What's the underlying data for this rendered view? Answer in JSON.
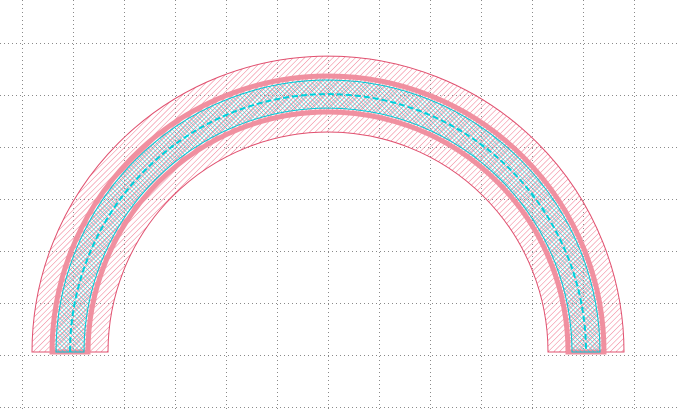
{
  "layout_view": {
    "background_color": "#ffffff",
    "grid": {
      "visible": true,
      "style": "dotted",
      "dot_color": "#8a8a8a"
    },
    "shapes": [
      {
        "name": "outer-half-ring",
        "kind": "half-annulus",
        "fill_pattern": "diagonal-hatch",
        "color": "#f06a84",
        "outline_color": "#e04f6e"
      },
      {
        "name": "middle-half-ring",
        "kind": "half-annulus",
        "fill_pattern": "dense-diagonal-hatch",
        "color": "#f090a0",
        "outline_color": "#f090a0"
      },
      {
        "name": "inner-half-ring",
        "kind": "half-annulus",
        "fill_pattern": "diagonal-hatch",
        "color": "#22d8e0",
        "outline_color": "#00c8d6"
      }
    ],
    "centerline": {
      "visible": true,
      "style": "dashed",
      "color": "#00d0dc"
    }
  }
}
